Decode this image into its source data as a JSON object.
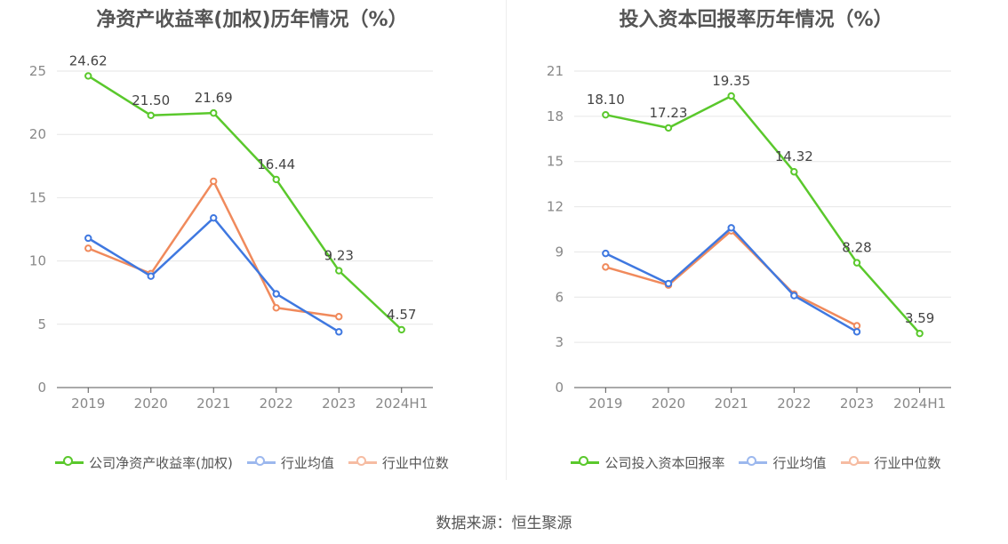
{
  "source": "数据来源：恒生聚源",
  "chart_data": [
    {
      "type": "line",
      "title": "净资产收益率(加权)历年情况（%）",
      "categories": [
        "2019",
        "2020",
        "2021",
        "2022",
        "2023",
        "2024H1"
      ],
      "ylim": [
        0,
        25
      ],
      "yticks": [
        0,
        5,
        10,
        15,
        20,
        25
      ],
      "grid": true,
      "legend_position": "bottom",
      "series": [
        {
          "name": "公司净资产收益率(加权)",
          "color": "#5ac82c",
          "values": [
            24.62,
            21.5,
            21.69,
            16.44,
            9.23,
            4.57
          ],
          "labels": [
            "24.62",
            "21.50",
            "21.69",
            "16.44",
            "9.23",
            "4.57"
          ]
        },
        {
          "name": "行业均值",
          "color": "#3f78e0",
          "values": [
            11.8,
            8.8,
            13.4,
            7.4,
            4.4,
            null
          ]
        },
        {
          "name": "行业中位数",
          "color": "#f08a5c",
          "values": [
            11.0,
            9.0,
            16.3,
            6.3,
            5.6,
            null
          ]
        }
      ]
    },
    {
      "type": "line",
      "title": "投入资本回报率历年情况（%）",
      "categories": [
        "2019",
        "2020",
        "2021",
        "2022",
        "2023",
        "2024H1"
      ],
      "ylim": [
        0,
        21
      ],
      "yticks": [
        0,
        3,
        6,
        9,
        12,
        15,
        18,
        21
      ],
      "grid": true,
      "legend_position": "bottom",
      "series": [
        {
          "name": "公司投入资本回报率",
          "color": "#5ac82c",
          "values": [
            18.1,
            17.23,
            19.35,
            14.32,
            8.28,
            3.59
          ],
          "labels": [
            "18.10",
            "17.23",
            "19.35",
            "14.32",
            "8.28",
            "3.59"
          ]
        },
        {
          "name": "行业均值",
          "color": "#3f78e0",
          "values": [
            8.9,
            6.9,
            10.6,
            6.1,
            3.7,
            null
          ]
        },
        {
          "name": "行业中位数",
          "color": "#f08a5c",
          "values": [
            8.0,
            6.8,
            10.4,
            6.2,
            4.1,
            null
          ]
        }
      ]
    }
  ]
}
